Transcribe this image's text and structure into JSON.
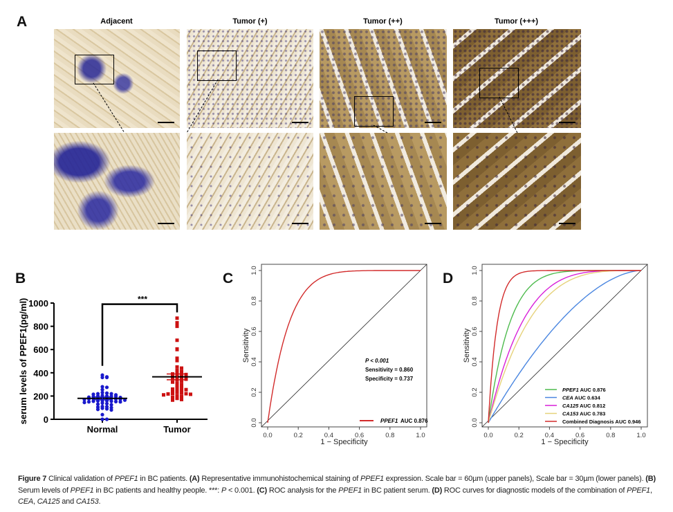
{
  "panel_a": {
    "label": "A",
    "columns": [
      "Adjacent",
      "Tumor (+)",
      "Tumor (++)",
      "Tumor (+++)"
    ]
  },
  "chart_data": [
    {
      "panel": "B",
      "type": "scatter",
      "ylabel": "serum levels of PPEF1(pg/ml)",
      "categories": [
        "Normal",
        "Tumor"
      ],
      "ylim": [
        0,
        1000
      ],
      "yticks": [
        0,
        200,
        400,
        600,
        800,
        1000
      ],
      "significance": "***",
      "series": [
        {
          "category": "Normal",
          "color": "#1a1acc",
          "marker": "circle",
          "mean": 180,
          "sem": 12,
          "values": [
            380,
            365,
            360,
            360,
            280,
            275,
            255,
            230,
            225,
            220,
            220,
            215,
            210,
            205,
            200,
            200,
            198,
            195,
            195,
            190,
            188,
            185,
            185,
            180,
            180,
            178,
            175,
            175,
            172,
            170,
            165,
            160,
            160,
            158,
            155,
            155,
            152,
            150,
            150,
            145,
            140,
            135,
            130,
            125,
            110,
            108,
            105,
            100,
            95,
            90,
            85,
            80,
            40,
            0,
            0
          ]
        },
        {
          "category": "Tumor",
          "color": "#cc1111",
          "marker": "square",
          "mean": 365,
          "sem": 25,
          "values": [
            870,
            830,
            820,
            800,
            680,
            605,
            600,
            525,
            505,
            450,
            440,
            420,
            410,
            400,
            395,
            390,
            385,
            380,
            370,
            365,
            360,
            355,
            350,
            345,
            340,
            330,
            320,
            310,
            300,
            290,
            280,
            270,
            265,
            260,
            255,
            250,
            240,
            235,
            230,
            225,
            222,
            220,
            218,
            215,
            210,
            200,
            195,
            190,
            180,
            170,
            165
          ]
        }
      ]
    },
    {
      "panel": "C",
      "type": "line",
      "xlabel": "1 − Specificity",
      "ylabel": "Sensitivity",
      "xlim": [
        0,
        1
      ],
      "ylim": [
        0,
        1
      ],
      "ticks": [
        "0.0",
        "0.2",
        "0.4",
        "0.6",
        "0.8",
        "1.0"
      ],
      "series": [
        {
          "name": "PPEF1",
          "legend": "AUC 0.876",
          "auc": 0.876,
          "color": "#d22a2a"
        }
      ],
      "annotations": [
        "P < 0.001",
        "Sensitivity = 0.860",
        "Specificity = 0.737"
      ],
      "diagonal": true
    },
    {
      "panel": "D",
      "type": "line",
      "xlabel": "1 − Specificity",
      "ylabel": "Sensitivity",
      "xlim": [
        0,
        1
      ],
      "ylim": [
        0,
        1
      ],
      "ticks": [
        "0.0",
        "0.2",
        "0.4",
        "0.6",
        "0.8",
        "1.0"
      ],
      "legend_position": "bottom-right",
      "diagonal": true,
      "series": [
        {
          "name": "PPEF1",
          "legend": "AUC 0.876",
          "auc": 0.876,
          "color": "#4dbb4d",
          "italic": true
        },
        {
          "name": "CEA",
          "legend": "AUC 0.634",
          "auc": 0.634,
          "color": "#4a86e0",
          "italic": true
        },
        {
          "name": "CA125",
          "legend": "AUC 0.812",
          "auc": 0.812,
          "color": "#d81fd8",
          "italic": true
        },
        {
          "name": "CA153",
          "legend": "AUC 0.783",
          "auc": 0.783,
          "color": "#e6d27a",
          "italic": true
        },
        {
          "name": "Combined Diagnosis",
          "legend": "AUC 0.946",
          "auc": 0.946,
          "color": "#d22a2a",
          "italic": false
        }
      ]
    }
  ],
  "caption": [
    {
      "t": "Figure 7",
      "s": "b"
    },
    {
      "t": " Clinical validation of "
    },
    {
      "t": "PPEF1",
      "s": "i"
    },
    {
      "t": " in BC patients. "
    },
    {
      "t": "(A)",
      "s": "b"
    },
    {
      "t": " Representative immunohistochemical staining of "
    },
    {
      "t": "PPEF1",
      "s": "i"
    },
    {
      "t": " expression. Scale bar = 60µm (upper panels), Scale bar = 30µm (lower panels). "
    },
    {
      "t": "(B)",
      "s": "b"
    },
    {
      "t": " Serum levels of "
    },
    {
      "t": "PPEF1",
      "s": "i"
    },
    {
      "t": " in BC patients and healthy people. ***: "
    },
    {
      "t": "P",
      "s": "i"
    },
    {
      "t": " < 0.001. "
    },
    {
      "t": "(C)",
      "s": "b"
    },
    {
      "t": " ROC analysis for the "
    },
    {
      "t": "PPEF1",
      "s": "i"
    },
    {
      "t": " in BC patient serum. "
    },
    {
      "t": "(D)",
      "s": "b"
    },
    {
      "t": " ROC curves for diagnostic models of the combination of "
    },
    {
      "t": "PPEF1",
      "s": "i"
    },
    {
      "t": ", "
    },
    {
      "t": "CEA",
      "s": "i"
    },
    {
      "t": ", "
    },
    {
      "t": "CA125",
      "s": "i"
    },
    {
      "t": " and "
    },
    {
      "t": "CA153",
      "s": "i"
    },
    {
      "t": "."
    }
  ]
}
